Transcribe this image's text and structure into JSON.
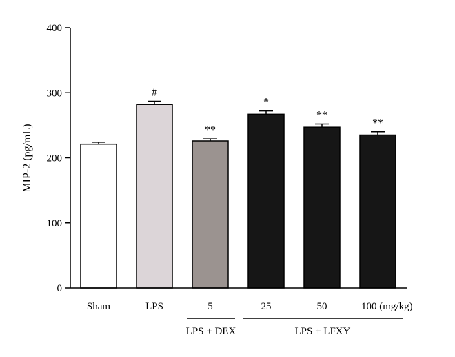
{
  "chart_data": {
    "type": "bar",
    "ylabel": "MIP-2 (pg/mL)",
    "xlabel": "",
    "ylim": [
      0,
      400
    ],
    "yticks": [
      0,
      100,
      200,
      300,
      400
    ],
    "categories": [
      "Sham",
      "LPS",
      "5",
      "25",
      "50",
      "100 (mg/kg)"
    ],
    "values": [
      221,
      282,
      226,
      267,
      247,
      235
    ],
    "errors": [
      3,
      5,
      3,
      5,
      5,
      5
    ],
    "significance": [
      "",
      "#",
      "**",
      "*",
      "**",
      "**"
    ],
    "bar_colors": [
      "#ffffff",
      "#dcd5d8",
      "#9b9390",
      "#161616",
      "#161616",
      "#161616"
    ],
    "groups": [
      {
        "label": "LPS + DEX",
        "from": 2,
        "to": 2
      },
      {
        "label": "LPS + LFXY",
        "from": 3,
        "to": 5
      }
    ]
  }
}
